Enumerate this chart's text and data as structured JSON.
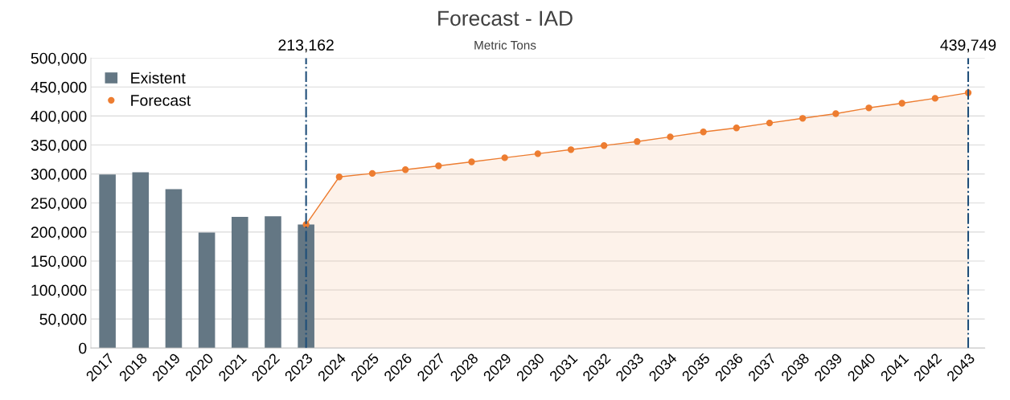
{
  "chart_data": {
    "type": "bar",
    "title": "Forecast - IAD",
    "subtitle": "Metric Tons",
    "categories": [
      "2017",
      "2018",
      "2019",
      "2020",
      "2021",
      "2022",
      "2023",
      "2024",
      "2025",
      "2026",
      "2027",
      "2028",
      "2029",
      "2030",
      "2031",
      "2032",
      "2033",
      "2034",
      "2035",
      "2036",
      "2037",
      "2038",
      "2039",
      "2040",
      "2041",
      "2042",
      "2043"
    ],
    "series": [
      {
        "name": "Existent",
        "color": "#647784",
        "values": [
          299000,
          303000,
          274000,
          199000,
          226000,
          227000,
          213000,
          null,
          null,
          null,
          null,
          null,
          null,
          null,
          null,
          null,
          null,
          null,
          null,
          null,
          null,
          null,
          null,
          null,
          null,
          null,
          null
        ]
      },
      {
        "name": "Forecast",
        "type": "area",
        "color": "#ed7d31",
        "marker": "circle",
        "values": [
          null,
          null,
          null,
          null,
          null,
          null,
          213000,
          295000,
          301000,
          307500,
          314000,
          321000,
          328000,
          335000,
          342000,
          349000,
          356000,
          364000,
          372500,
          379500,
          388000,
          396000,
          404000,
          414000,
          422000,
          430500,
          440000
        ]
      }
    ],
    "ylim": [
      0,
      500000
    ],
    "yticks": [
      0,
      {
        "value": 50000,
        "label": "50,000"
      },
      {
        "value": 100000,
        "label": "100,000"
      },
      {
        "value": 150000,
        "label": "150,000"
      },
      {
        "value": 200000,
        "label": "200,000"
      },
      {
        "value": 250000,
        "label": "250,000"
      },
      {
        "value": 300000,
        "label": "300,000"
      },
      {
        "value": 350000,
        "label": "350,000"
      },
      {
        "value": 400000,
        "label": "400,000"
      },
      {
        "value": 450000,
        "label": "450,000"
      },
      {
        "value": 500000,
        "label": "500,000"
      }
    ],
    "ref_lines": [
      {
        "axis": "x",
        "value": "2023",
        "label": "213,162",
        "color": "#1f4e79",
        "line_style": "dashdot"
      },
      {
        "axis": "x",
        "value": "2043",
        "label": "439,749",
        "color": "#1f4e79",
        "line_style": "dashdot"
      }
    ],
    "grid": "y",
    "legend": "top left"
  }
}
